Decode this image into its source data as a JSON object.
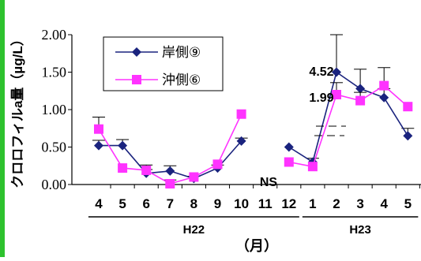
{
  "chart_data": {
    "type": "line",
    "title": "",
    "ylabel": "クロロフィルa量（µg/L）",
    "xlabel": "（月）",
    "ylim": [
      0,
      2
    ],
    "yticks": [
      "0.00",
      "0.50",
      "1.00",
      "1.50",
      "2.00"
    ],
    "categories": [
      "4",
      "5",
      "6",
      "7",
      "8",
      "9",
      "10",
      "11",
      "12",
      "1",
      "2",
      "3",
      "4",
      "5"
    ],
    "year_groups": [
      {
        "label": "H22",
        "from": "4",
        "to": "12"
      },
      {
        "label": "H23",
        "from": "1",
        "to": "5"
      }
    ],
    "annotations": [
      "NS",
      "4.52",
      "1.99"
    ],
    "legend_position": "top-left",
    "grid": false,
    "series": [
      {
        "name": "岸側⑨",
        "color": "#1a237e",
        "marker": "diamond",
        "values": [
          0.52,
          0.52,
          0.15,
          0.18,
          0.08,
          0.22,
          0.58,
          null,
          0.5,
          0.3,
          1.5,
          1.28,
          1.16,
          0.65
        ],
        "errors": [
          0.07,
          0.08,
          0.05,
          0.07,
          0.03,
          0.04,
          0.04,
          null,
          null,
          0.05,
          0.5,
          0.26,
          0.12,
          0.1
        ]
      },
      {
        "name": "沖側⑥",
        "color": "#ff33ff",
        "marker": "square",
        "values": [
          0.74,
          0.22,
          0.19,
          0.01,
          0.1,
          0.27,
          0.94,
          null,
          0.3,
          0.24,
          1.2,
          1.12,
          1.32,
          1.04
        ],
        "errors": [
          0.16,
          null,
          0.07,
          0.05,
          null,
          null,
          null,
          null,
          null,
          null,
          0.16,
          0.11,
          0.24,
          null
        ]
      }
    ]
  }
}
